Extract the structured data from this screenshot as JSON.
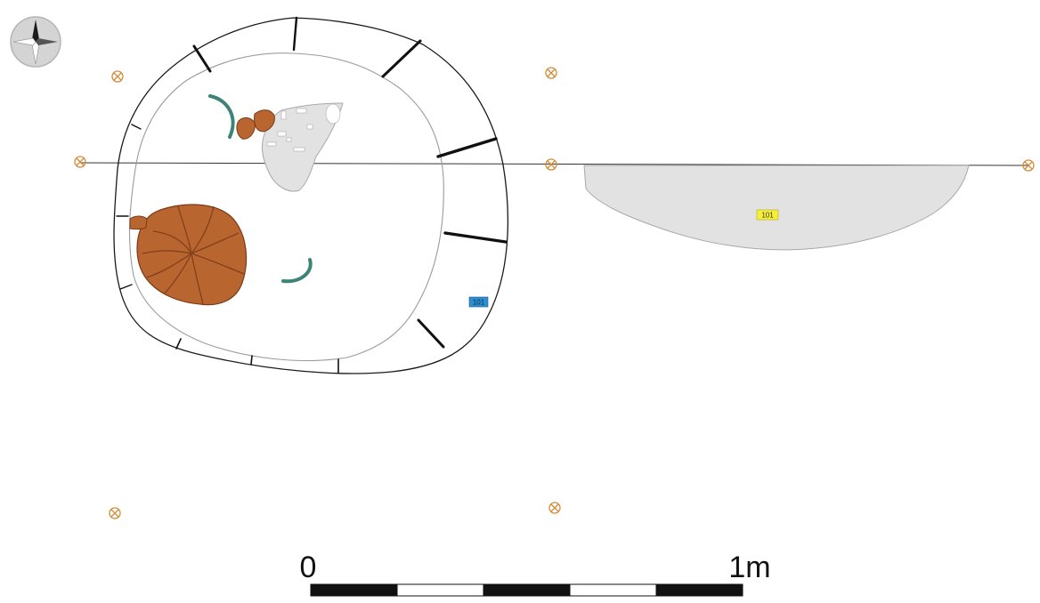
{
  "colors": {
    "outline": "#1a1a1a",
    "pit_fill": "#e2e2e2",
    "pit_stroke": "#a9a9a9",
    "stone_fill": "#b9652f",
    "stone_line": "#7a3a18",
    "arc": "#3e8378",
    "marker": "#d48c3a",
    "label_yellow": "#f5ee3a",
    "label_blue": "#2c8fd1"
  },
  "plan": {
    "north_arrow_icon": "compass-rose-icon",
    "grid_marker_icon": "circled-x-icon",
    "context_label_blue": "101"
  },
  "section": {
    "context_label": "101"
  },
  "scale_bar": {
    "start_label": "0",
    "end_label": "1m",
    "segments": 5
  }
}
